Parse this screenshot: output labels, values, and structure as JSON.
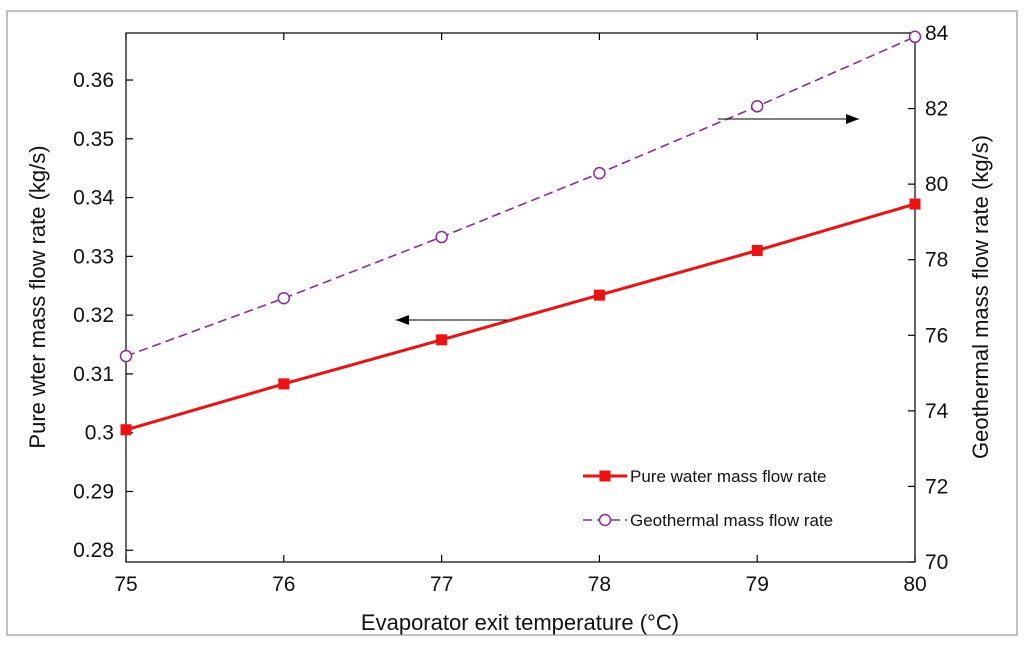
{
  "chart_data": {
    "type": "line",
    "title": "",
    "xlabel": "Evaporator exit temperature (°C)",
    "ylabel": "Pure wter mass flow rate (kg/s)",
    "y2label": "Geothermal mass flow rate (kg/s)",
    "x": [
      75,
      76,
      77,
      78,
      79,
      80
    ],
    "xlim": [
      75,
      80
    ],
    "ylim": [
      0.278,
      0.368
    ],
    "y2lim": [
      70,
      84
    ],
    "xticks": [
      "75",
      "76",
      "77",
      "78",
      "79",
      "80"
    ],
    "yticks": [
      "0.28",
      "0.29",
      "0.3",
      "0.31",
      "0.32",
      "0.33",
      "0.34",
      "0.35",
      "0.36"
    ],
    "y2ticks": [
      "70",
      "72",
      "74",
      "76",
      "78",
      "80",
      "82",
      "84"
    ],
    "grid": false,
    "legend_position": "bottom-right",
    "series": [
      {
        "name": "Pure water mass flow rate",
        "axis": "left",
        "values": [
          0.3005,
          0.3083,
          0.3158,
          0.3234,
          0.331,
          0.3389
        ],
        "color": "#ee1111",
        "marker": "filled-square",
        "line_style": "solid"
      },
      {
        "name": "Geothermal mass flow rate",
        "axis": "right",
        "values": [
          75.45,
          76.98,
          78.6,
          80.29,
          82.06,
          83.9
        ],
        "color": "#8b2a9b",
        "marker": "open-circle",
        "line_style": "dashed"
      }
    ],
    "annotations": [
      {
        "type": "arrow",
        "direction": "left",
        "points_to": "left axis",
        "series": "Pure water mass flow rate",
        "color": "#000000"
      },
      {
        "type": "arrow",
        "direction": "right",
        "points_to": "right axis",
        "series": "Geothermal mass flow rate",
        "color": "#000000"
      }
    ]
  }
}
